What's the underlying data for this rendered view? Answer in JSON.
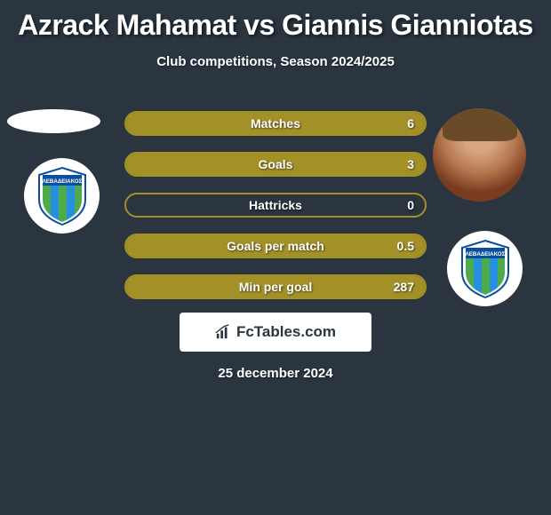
{
  "title": "Azrack Mahamat vs Giannis Gianniotas",
  "subtitle": "Club competitions, Season 2024/2025",
  "date": "25 december 2024",
  "brand": "FcTables.com",
  "colors": {
    "background": "#2a3540",
    "accent": "#a39128",
    "text": "#ffffff",
    "box_bg": "#ffffff",
    "box_text": "#2a3540"
  },
  "crest": {
    "top_text": "ΛΕΒΑΔΕΙΑΚΟΣ",
    "top_bg": "#0a4f9e",
    "stripe_green": "#4faa4a",
    "stripe_blue": "#2690e0",
    "outline": "#0a4f9e"
  },
  "stats": [
    {
      "label": "Matches",
      "right_value": "6",
      "right_fill_pct": 100
    },
    {
      "label": "Goals",
      "right_value": "3",
      "right_fill_pct": 100
    },
    {
      "label": "Hattricks",
      "right_value": "0",
      "right_fill_pct": 0
    },
    {
      "label": "Goals per match",
      "right_value": "0.5",
      "right_fill_pct": 100
    },
    {
      "label": "Min per goal",
      "right_value": "287",
      "right_fill_pct": 100
    }
  ]
}
